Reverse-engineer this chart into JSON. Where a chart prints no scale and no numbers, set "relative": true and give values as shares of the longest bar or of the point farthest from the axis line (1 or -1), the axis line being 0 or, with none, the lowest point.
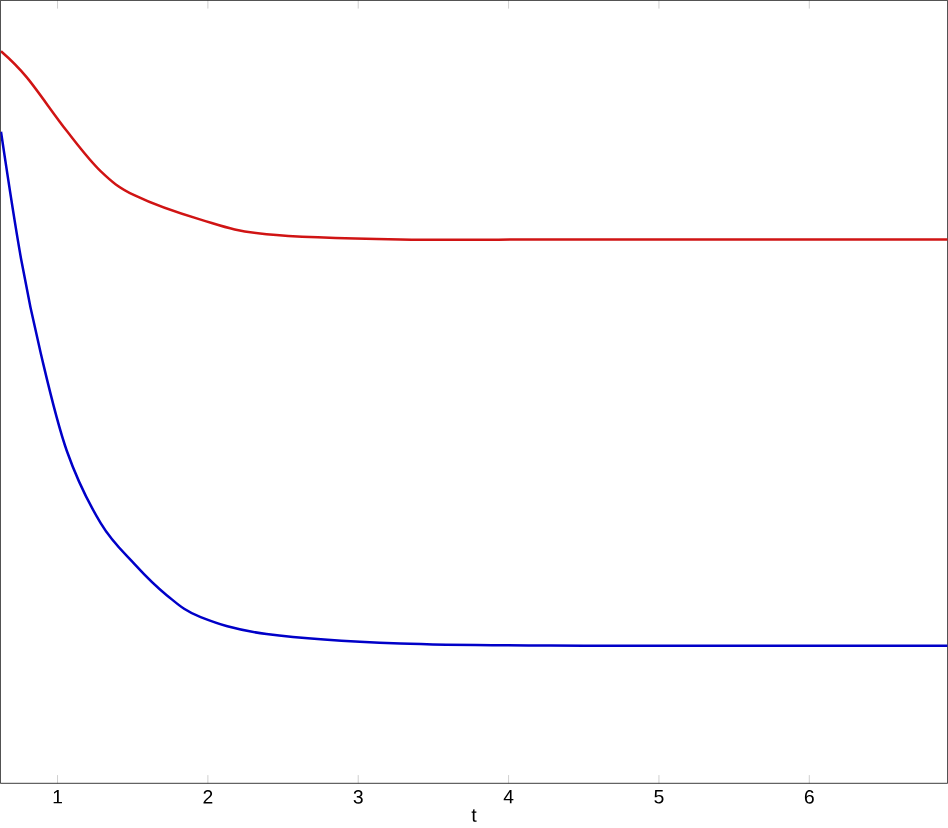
{
  "chart_data": {
    "type": "line",
    "relative": true,
    "xlabel": "t",
    "xlim": [
      0.62,
      6.92
    ],
    "xticks": [
      1,
      2,
      3,
      4,
      5,
      6
    ],
    "line_style": "solid",
    "series": [
      {
        "color": "#0000c8",
        "x": [
          0.624,
          0.757,
          0.89,
          1.062,
          1.288,
          1.514,
          1.726,
          1.952,
          2.39,
          3.28,
          4.5,
          6.92
        ],
        "values": [
          0.89,
          0.717,
          0.586,
          0.454,
          0.355,
          0.299,
          0.257,
          0.227,
          0.204,
          0.191,
          0.188,
          0.188
        ]
      },
      {
        "color": "#d01414",
        "x": [
          0.624,
          0.797,
          1.062,
          1.288,
          1.514,
          1.952,
          2.39,
          3.28,
          4.5,
          6.92
        ],
        "values": [
          1.0,
          0.964,
          0.891,
          0.836,
          0.803,
          0.77,
          0.75,
          0.743,
          0.743,
          0.743
        ]
      }
    ]
  }
}
